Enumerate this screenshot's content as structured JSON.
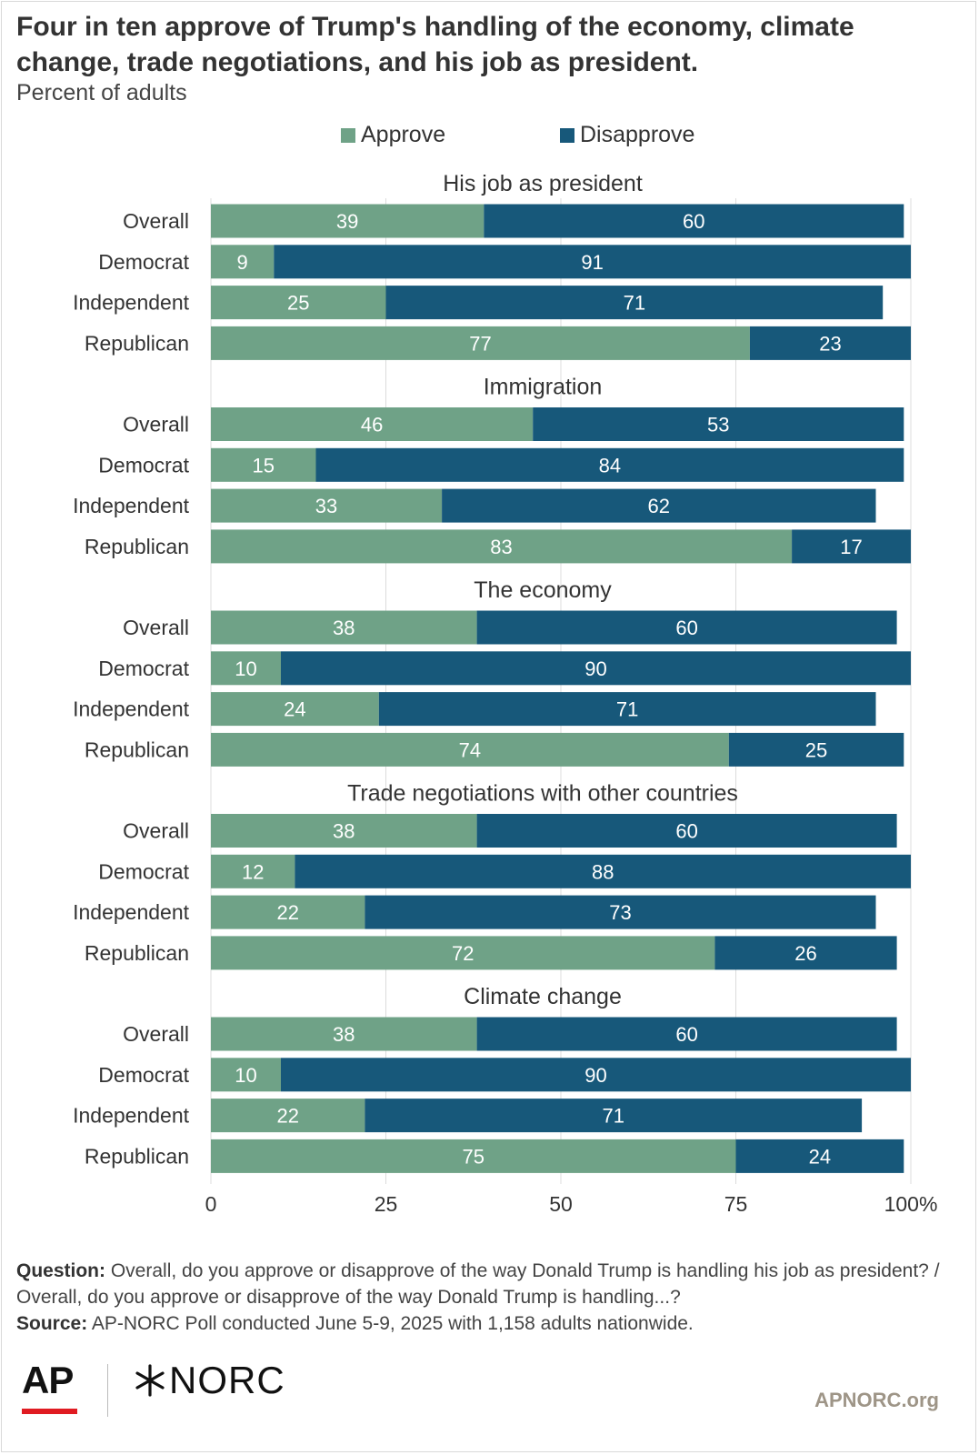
{
  "header": {
    "title": "Four in ten approve of Trump's handling of the economy, climate change, trade negotiations, and his job as president.",
    "subtitle": "Percent of adults"
  },
  "legend": [
    {
      "label": "Approve",
      "color": "#6fa287"
    },
    {
      "label": "Disapprove",
      "color": "#17587a"
    }
  ],
  "chart_data": {
    "type": "bar",
    "orientation": "horizontal",
    "stacked": true,
    "xlim": [
      0,
      100
    ],
    "x_ticks": [
      "0",
      "25",
      "50",
      "75",
      "100%"
    ],
    "grid": true,
    "legend_placement": "top",
    "series": [
      {
        "name": "Approve",
        "color": "#6fa287"
      },
      {
        "name": "Disapprove",
        "color": "#17587a"
      }
    ],
    "groups": [
      {
        "title": "His job as president",
        "rows": [
          {
            "label": "Overall",
            "approve": 39,
            "disapprove": 60
          },
          {
            "label": "Democrat",
            "approve": 9,
            "disapprove": 91
          },
          {
            "label": "Independent",
            "approve": 25,
            "disapprove": 71
          },
          {
            "label": "Republican",
            "approve": 77,
            "disapprove": 23
          }
        ]
      },
      {
        "title": "Immigration",
        "rows": [
          {
            "label": "Overall",
            "approve": 46,
            "disapprove": 53
          },
          {
            "label": "Democrat",
            "approve": 15,
            "disapprove": 84
          },
          {
            "label": "Independent",
            "approve": 33,
            "disapprove": 62
          },
          {
            "label": "Republican",
            "approve": 83,
            "disapprove": 17
          }
        ]
      },
      {
        "title": "The economy",
        "rows": [
          {
            "label": "Overall",
            "approve": 38,
            "disapprove": 60
          },
          {
            "label": "Democrat",
            "approve": 10,
            "disapprove": 90
          },
          {
            "label": "Independent",
            "approve": 24,
            "disapprove": 71
          },
          {
            "label": "Republican",
            "approve": 74,
            "disapprove": 25
          }
        ]
      },
      {
        "title": "Trade negotiations with other countries",
        "rows": [
          {
            "label": "Overall",
            "approve": 38,
            "disapprove": 60
          },
          {
            "label": "Democrat",
            "approve": 12,
            "disapprove": 88
          },
          {
            "label": "Independent",
            "approve": 22,
            "disapprove": 73
          },
          {
            "label": "Republican",
            "approve": 72,
            "disapprove": 26
          }
        ]
      },
      {
        "title": "Climate change",
        "rows": [
          {
            "label": "Overall",
            "approve": 38,
            "disapprove": 60
          },
          {
            "label": "Democrat",
            "approve": 10,
            "disapprove": 90
          },
          {
            "label": "Independent",
            "approve": 22,
            "disapprove": 71
          },
          {
            "label": "Republican",
            "approve": 75,
            "disapprove": 24
          }
        ]
      }
    ]
  },
  "footer": {
    "question_label": "Question:",
    "question_text": "Overall, do you approve or disapprove of the way Donald Trump is handling his job as president? / Overall, do you approve or disapprove of the way Donald Trump is handling...?",
    "source_label": "Source:",
    "source_text": "AP-NORC Poll conducted June 5-9, 2025 with 1,158 adults nationwide.",
    "logo_ap": "AP",
    "logo_norc": "NORC",
    "site": "APNORC.org"
  }
}
